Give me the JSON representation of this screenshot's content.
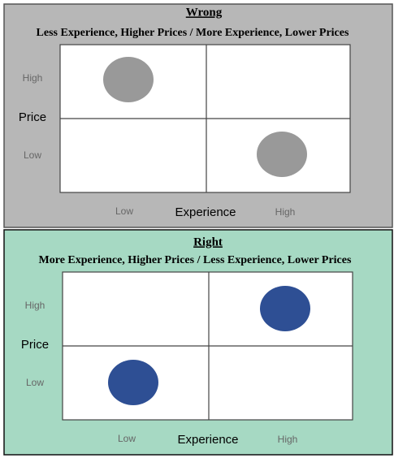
{
  "panels": [
    {
      "title": "Wrong",
      "subtitle": "Less Experience, Higher Prices / More Experience, Lower Prices",
      "y_label": "Price",
      "y_high": "High",
      "y_low": "Low",
      "x_label": "Experience",
      "x_low": "Low",
      "x_high": "High"
    },
    {
      "title": "Right",
      "subtitle": "More Experience, Higher Prices / Less Experience, Lower Prices",
      "y_label": "Price",
      "y_high": "High",
      "y_low": "Low",
      "x_label": "Experience",
      "x_low": "Low",
      "x_high": "High"
    }
  ]
}
